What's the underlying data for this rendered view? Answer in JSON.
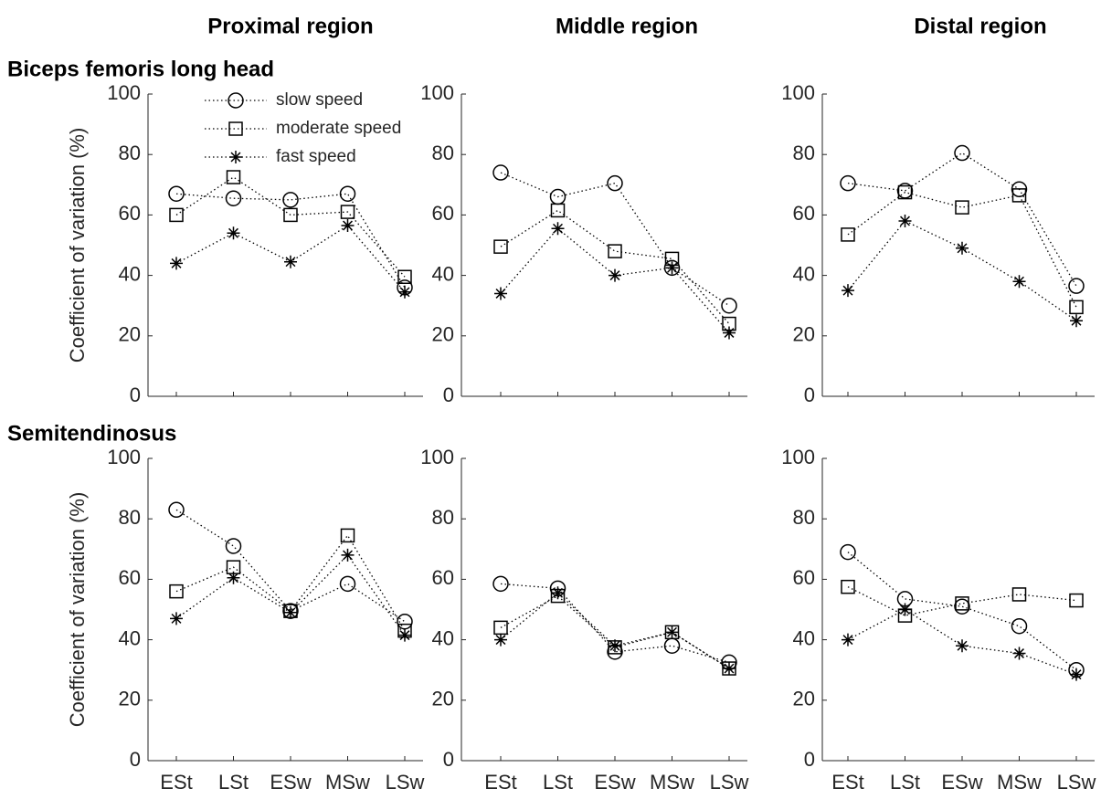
{
  "chart_data": [
    {
      "type": "line",
      "title": "Proximal region",
      "row_label": "Biceps femoris long head",
      "ylabel": "Coefficient of variation (%)",
      "categories": [
        null,
        null,
        null,
        null,
        null
      ],
      "ylim": [
        0,
        100
      ],
      "yticks": [
        0,
        20,
        40,
        60,
        80,
        100
      ],
      "linestyle": "dotted",
      "legend": "upper left",
      "series": [
        {
          "name": "slow speed",
          "marker": "circle",
          "color": "#000000",
          "values": [
            67,
            65.5,
            65,
            67,
            36
          ]
        },
        {
          "name": "moderate speed",
          "marker": "square",
          "color": "#000000",
          "values": [
            60,
            72.5,
            60,
            61,
            39.5
          ]
        },
        {
          "name": "fast speed",
          "marker": "asterisk",
          "color": "#000000",
          "values": [
            44,
            54,
            44.5,
            56.5,
            34.5
          ]
        }
      ]
    },
    {
      "type": "line",
      "title": "Middle region",
      "categories": [
        null,
        null,
        null,
        null,
        null
      ],
      "ylim": [
        0,
        100
      ],
      "yticks": [
        0,
        20,
        40,
        60,
        80,
        100
      ],
      "linestyle": "dotted",
      "series": [
        {
          "marker": "circle",
          "color": "#000000",
          "values": [
            74,
            66,
            70.5,
            42.5,
            30
          ]
        },
        {
          "marker": "square",
          "color": "#000000",
          "values": [
            49.5,
            61.5,
            48,
            45.5,
            24
          ]
        },
        {
          "marker": "asterisk",
          "color": "#000000",
          "values": [
            34,
            55.5,
            40,
            42.5,
            21
          ]
        }
      ]
    },
    {
      "type": "line",
      "title": "Distal region",
      "categories": [
        null,
        null,
        null,
        null,
        null
      ],
      "ylim": [
        0,
        100
      ],
      "yticks": [
        0,
        20,
        40,
        60,
        80,
        100
      ],
      "linestyle": "dotted",
      "series": [
        {
          "marker": "circle",
          "color": "#000000",
          "values": [
            70.5,
            68,
            80.5,
            68.5,
            36.5
          ]
        },
        {
          "marker": "square",
          "color": "#000000",
          "values": [
            53.5,
            67.5,
            62.5,
            66.5,
            29.5
          ]
        },
        {
          "marker": "asterisk",
          "color": "#000000",
          "values": [
            35,
            58,
            49,
            38,
            25
          ]
        }
      ]
    },
    {
      "type": "line",
      "row_label": "Semitendinosus",
      "ylabel": "Coefficient of variation (%)",
      "categories": [
        "ESt",
        "LSt",
        "ESw",
        "MSw",
        "LSw"
      ],
      "ylim": [
        0,
        100
      ],
      "yticks": [
        0,
        20,
        40,
        60,
        80,
        100
      ],
      "linestyle": "dotted",
      "series": [
        {
          "marker": "circle",
          "color": "#000000",
          "values": [
            83,
            71,
            49.5,
            58.5,
            46
          ]
        },
        {
          "marker": "square",
          "color": "#000000",
          "values": [
            56,
            64,
            49.5,
            74.5,
            43
          ]
        },
        {
          "marker": "asterisk",
          "color": "#000000",
          "values": [
            47,
            60.5,
            49,
            68,
            41.5
          ]
        }
      ]
    },
    {
      "type": "line",
      "categories": [
        "ESt",
        "LSt",
        "ESw",
        "MSw",
        "LSw"
      ],
      "ylim": [
        0,
        100
      ],
      "yticks": [
        0,
        20,
        40,
        60,
        80,
        100
      ],
      "linestyle": "dotted",
      "series": [
        {
          "marker": "circle",
          "color": "#000000",
          "values": [
            58.5,
            57,
            36,
            38,
            32.5
          ]
        },
        {
          "marker": "square",
          "color": "#000000",
          "values": [
            44,
            54.5,
            37.5,
            42.5,
            30.5
          ]
        },
        {
          "marker": "asterisk",
          "color": "#000000",
          "values": [
            40,
            55.5,
            38,
            42.5,
            30.5
          ]
        }
      ]
    },
    {
      "type": "line",
      "categories": [
        "ESt",
        "LSt",
        "ESw",
        "MSw",
        "LSw"
      ],
      "ylim": [
        0,
        100
      ],
      "yticks": [
        0,
        20,
        40,
        60,
        80,
        100
      ],
      "linestyle": "dotted",
      "series": [
        {
          "marker": "circle",
          "color": "#000000",
          "values": [
            69,
            53.5,
            51,
            44.5,
            30
          ]
        },
        {
          "marker": "square",
          "color": "#000000",
          "values": [
            57.5,
            48,
            52,
            55,
            53
          ]
        },
        {
          "marker": "asterisk",
          "color": "#000000",
          "values": [
            40,
            50,
            38,
            35.5,
            28.5
          ]
        }
      ]
    }
  ]
}
